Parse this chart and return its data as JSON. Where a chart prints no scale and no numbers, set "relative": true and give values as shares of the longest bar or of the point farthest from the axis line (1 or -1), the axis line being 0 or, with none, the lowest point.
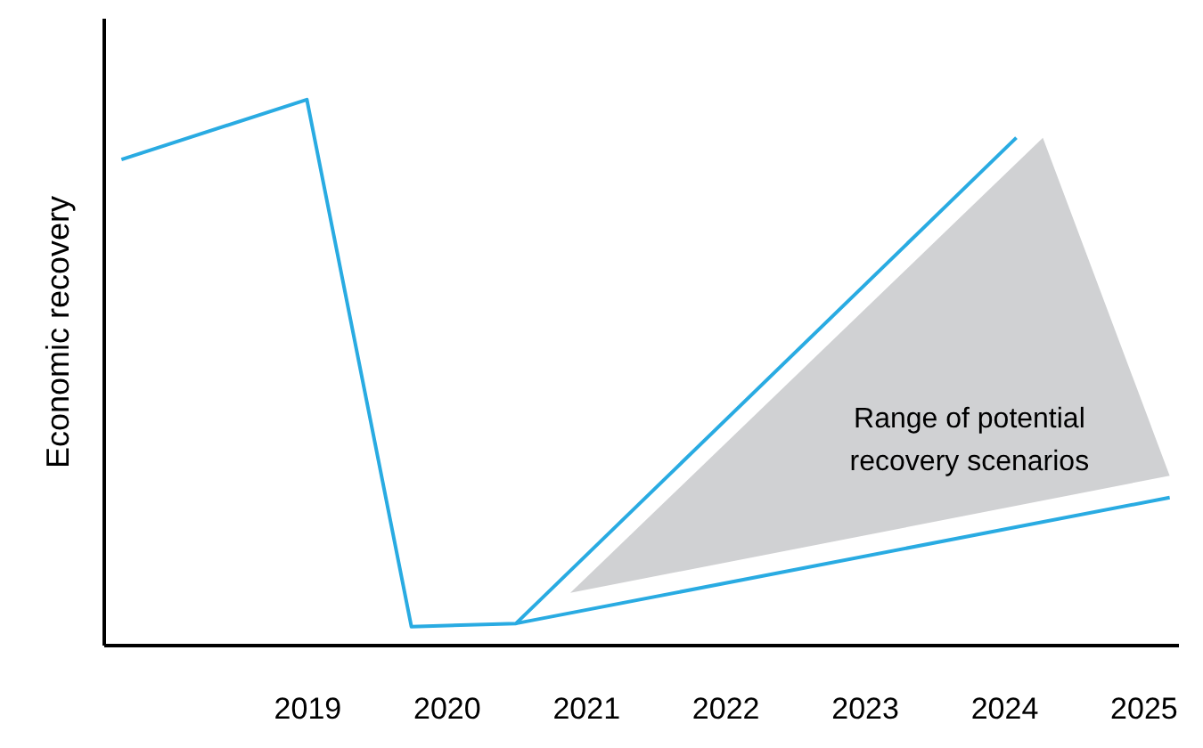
{
  "chart_data": {
    "type": "line",
    "relative": true,
    "ylabel": "Economic recovery",
    "xlim": [
      2017.54,
      2025.25
    ],
    "xticks": [
      2019,
      2020,
      2021,
      2022,
      2023,
      2024,
      2025
    ],
    "grid": false,
    "marker": "none",
    "line_style": "solid",
    "series": [
      {
        "color": "#29abe2",
        "x": [
          2017.67,
          2019,
          2019.75,
          2020.5,
          2024.09
        ],
        "values": [
          0.89,
          1,
          0.033,
          0.039,
          0.93
        ]
      },
      {
        "color": "#29abe2",
        "x": [
          2020.5,
          2025.19
        ],
        "values": [
          0.039,
          0.27
        ]
      },
      {
        "type": "area",
        "color": "#d0d1d3",
        "x": [
          2020.89,
          2024.28,
          2025.19,
          2020.89
        ],
        "values": [
          0.095,
          0.93,
          0.31,
          0.095
        ]
      }
    ],
    "annotations": [
      "Range of potential\nrecovery scenarios"
    ]
  }
}
